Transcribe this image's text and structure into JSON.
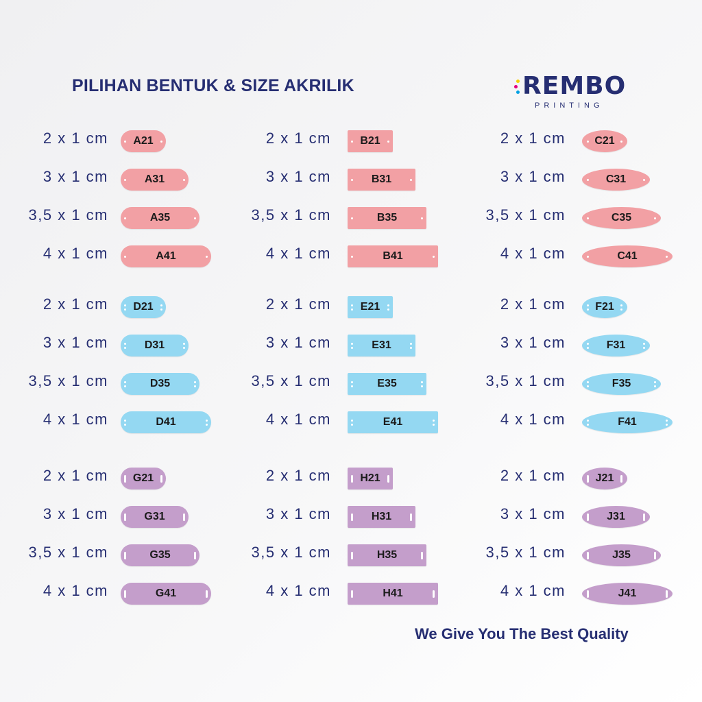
{
  "title": "PILIHAN BENTUK & SIZE AKRILIK",
  "logo": {
    "word": "REMBO",
    "sub": "PRINTING",
    "dot_colors": [
      "#f5d000",
      "#e5007e",
      "#00a0e3"
    ]
  },
  "footer": "We Give You The Best Quality",
  "colors": {
    "pink": "#f2a0a4",
    "blue": "#94d8f2",
    "purple": "#c49ecb",
    "text": "#262e72"
  },
  "shapes": [
    "rounded",
    "rectangle",
    "ellipse"
  ],
  "groups": [
    {
      "color": "pink",
      "hole": "dot",
      "columns": [
        {
          "shape": "rounded",
          "tags": [
            {
              "size": "2 x 1 cm",
              "code": "A21"
            },
            {
              "size": "3 x 1  cm",
              "code": "A31"
            },
            {
              "size": "3,5 x 1  cm",
              "code": "A35"
            },
            {
              "size": "4 x 1 cm",
              "code": "A41"
            }
          ]
        },
        {
          "shape": "rectangle",
          "tags": [
            {
              "size": "2 x 1 cm",
              "code": "B21"
            },
            {
              "size": "3 x 1  cm",
              "code": "B31"
            },
            {
              "size": "3,5 x 1  cm",
              "code": "B35"
            },
            {
              "size": "4 x 1 cm",
              "code": "B41"
            }
          ]
        },
        {
          "shape": "ellipse",
          "tags": [
            {
              "size": "2 x 1 cm",
              "code": "C21"
            },
            {
              "size": "3 x 1  cm",
              "code": "C31"
            },
            {
              "size": "3,5 x 1  cm",
              "code": "C35"
            },
            {
              "size": "4 x 1 cm",
              "code": "C41"
            }
          ]
        }
      ]
    },
    {
      "color": "blue",
      "hole": "double-dot",
      "columns": [
        {
          "shape": "rounded",
          "tags": [
            {
              "size": "2 x 1 cm",
              "code": "D21"
            },
            {
              "size": "3 x 1  cm",
              "code": "D31"
            },
            {
              "size": "3,5 x 1  cm",
              "code": "D35"
            },
            {
              "size": "4 x 1 cm",
              "code": "D41"
            }
          ]
        },
        {
          "shape": "rectangle",
          "tags": [
            {
              "size": "2 x 1 cm",
              "code": "E21"
            },
            {
              "size": "3 x 1  cm",
              "code": "E31"
            },
            {
              "size": "3,5 x 1  cm",
              "code": "E35"
            },
            {
              "size": "4 x 1 cm",
              "code": "E41"
            }
          ]
        },
        {
          "shape": "ellipse",
          "tags": [
            {
              "size": "2 x 1 cm",
              "code": "F21"
            },
            {
              "size": "3 x 1  cm",
              "code": "F31"
            },
            {
              "size": "3,5 x 1  cm",
              "code": "F35"
            },
            {
              "size": "4 x 1 cm",
              "code": "F41"
            }
          ]
        }
      ]
    },
    {
      "color": "purple",
      "hole": "slot",
      "columns": [
        {
          "shape": "rounded",
          "tags": [
            {
              "size": "2 x 1 cm",
              "code": "G21"
            },
            {
              "size": "3 x 1  cm",
              "code": "G31"
            },
            {
              "size": "3,5 x 1  cm",
              "code": "G35"
            },
            {
              "size": "4 x 1 cm",
              "code": "G41"
            }
          ]
        },
        {
          "shape": "rectangle",
          "tags": [
            {
              "size": "2 x 1 cm",
              "code": "H21"
            },
            {
              "size": "3 x 1  cm",
              "code": "H31"
            },
            {
              "size": "3,5 x 1  cm",
              "code": "H35"
            },
            {
              "size": "4 x 1 cm",
              "code": "H41"
            }
          ]
        },
        {
          "shape": "ellipse",
          "tags": [
            {
              "size": "2 x 1 cm",
              "code": "J21"
            },
            {
              "size": "3 x 1  cm",
              "code": "J31"
            },
            {
              "size": "3,5 x 1  cm",
              "code": "J35"
            },
            {
              "size": "4 x 1 cm",
              "code": "J41"
            }
          ]
        }
      ]
    }
  ]
}
